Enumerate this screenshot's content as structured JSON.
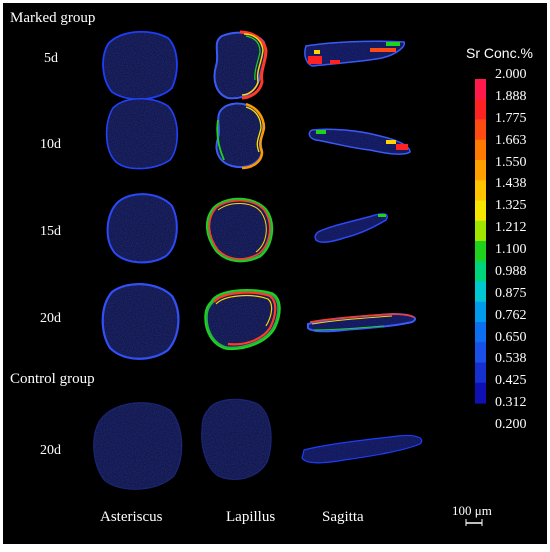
{
  "groups": {
    "marked": "Marked group",
    "control": "Control group"
  },
  "rows": [
    "5d",
    "10d",
    "15d",
    "20d",
    "20d"
  ],
  "columns": [
    "Asteriscus",
    "Lapillus",
    "Sagitta"
  ],
  "legend": {
    "title": "Sr Conc.%",
    "ticks": [
      "2.000",
      "1.888",
      "1.775",
      "1.663",
      "1.550",
      "1.438",
      "1.325",
      "1.212",
      "1.100",
      "0.988",
      "0.875",
      "0.762",
      "0.650",
      "0.538",
      "0.425",
      "0.312",
      "0.200"
    ],
    "colors": [
      "#ff1a4b",
      "#ff2222",
      "#ff4a12",
      "#ff7a00",
      "#ff9f00",
      "#ffc300",
      "#f5e600",
      "#9ee600",
      "#1ed21e",
      "#00d47a",
      "#00c8d2",
      "#009bea",
      "#0b6ff0",
      "#1a4fe8",
      "#1630d0",
      "#0e10b4"
    ]
  },
  "scale_bar": "100 μm",
  "colors": {
    "background": "#000000",
    "low": "#0e10b4",
    "high": "#ff1a4b"
  }
}
